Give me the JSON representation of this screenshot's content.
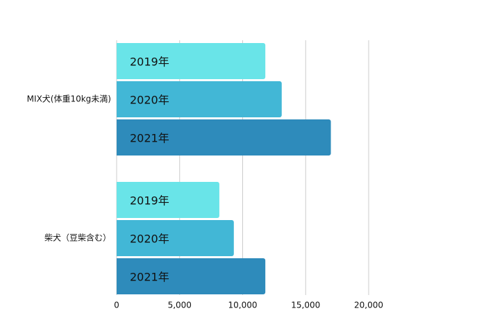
{
  "chart_data": {
    "type": "bar",
    "orientation": "horizontal",
    "categories": [
      "MIX犬(体重10kg未満)",
      "柴犬（豆柴含む）"
    ],
    "series": [
      {
        "name": "2019年",
        "color": "#69e4e8",
        "values": [
          11800,
          8150
        ]
      },
      {
        "name": "2020年",
        "color": "#42b7d6",
        "values": [
          13100,
          9300
        ]
      },
      {
        "name": "2021年",
        "color": "#2e8bbb",
        "values": [
          17000,
          11800
        ]
      }
    ],
    "xlim": [
      0,
      20000
    ],
    "xticks": [
      0,
      {
        "value": 5000,
        "label": "5,000"
      },
      {
        "value": 10000,
        "label": "10,000"
      },
      {
        "value": 15000,
        "label": "15,000"
      },
      {
        "value": 20000,
        "label": "20,000"
      }
    ],
    "grid": true
  }
}
